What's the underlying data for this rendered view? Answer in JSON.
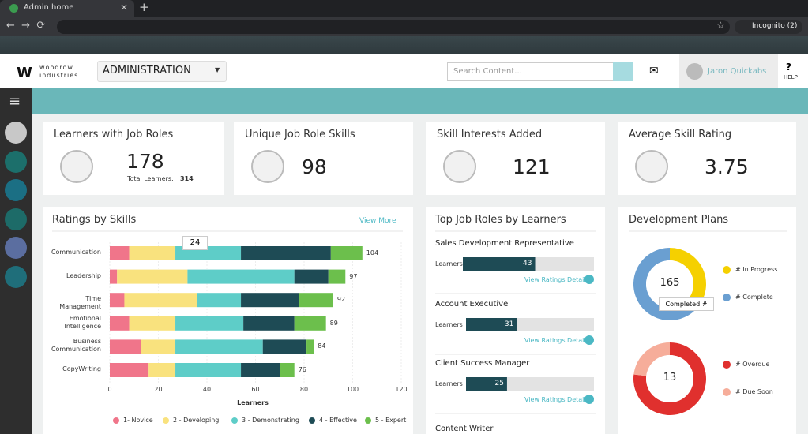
{
  "browser": {
    "tab_title": "Admin home",
    "profile": "Incognito (2)"
  },
  "header": {
    "logo_name": "woodrow",
    "logo_sub": "industries",
    "menu": "ADMINISTRATION",
    "search_placeholder": "Search Content...",
    "user": "Jaron Quickabs",
    "help": "HELP"
  },
  "kpis": [
    {
      "title": "Learners with Job Roles",
      "value": 178,
      "sub_label": "Total Learners:",
      "sub_value": 314
    },
    {
      "title": "Unique Job Role Skills",
      "value": 98
    },
    {
      "title": "Skill Interests Added",
      "value": 121
    },
    {
      "title": "Average Skill Rating",
      "value": 3.75
    }
  ],
  "chart_data": [
    {
      "type": "stacked-hbar",
      "title": "Ratings by Skills",
      "link": "View More",
      "categories": [
        "Communication",
        "Leadership",
        "Time Management",
        "Emotional Intelligence",
        "Business Communication",
        "CopyWriting"
      ],
      "series": [
        {
          "name": "1- Novice",
          "color": "#f0758a",
          "values": [
            8,
            3,
            6,
            8,
            13,
            16
          ]
        },
        {
          "name": "2 - Developing",
          "color": "#f9e27e",
          "values": [
            19,
            29,
            30,
            19,
            14,
            11
          ]
        },
        {
          "name": "3 - Demonstrating",
          "color": "#5ecdc8",
          "values": [
            27,
            44,
            18,
            28,
            36,
            27
          ]
        },
        {
          "name": "4 - Effective",
          "color": "#1e4b55",
          "values": [
            37,
            14,
            24,
            21,
            18,
            16
          ]
        },
        {
          "name": "5 - Expert",
          "color": "#6cbf4c",
          "values": [
            13,
            7,
            14,
            13,
            3,
            6
          ]
        }
      ],
      "totals": [
        104,
        97,
        92,
        89,
        84,
        76
      ],
      "xlim": [
        0,
        120
      ],
      "xticks": [
        0,
        20,
        40,
        60,
        80,
        100,
        120
      ],
      "xlabel": "Learners",
      "grid": true,
      "tooltip": "24"
    },
    {
      "type": "progress-bar",
      "title": "Top Job Roles by Learners",
      "categories": [
        "Sales Development Representative",
        "Account Executive",
        "Client Success Manager",
        "Content Writer"
      ],
      "values": [
        43,
        31,
        25,
        null
      ],
      "bar_label": "Learners",
      "link": "View Ratings Details",
      "xlim": [
        0,
        78
      ],
      "color": "#1e4b55"
    },
    {
      "type": "donut",
      "title": "Development Plans",
      "total": 165,
      "categories": [
        "# In Progress",
        "# Complete"
      ],
      "values": [
        58,
        107
      ],
      "colors": [
        "#f5d000",
        "#6a9fd1"
      ],
      "tooltip": "Completed #"
    },
    {
      "type": "donut",
      "total": 13,
      "categories": [
        "# Overdue",
        "# Due Soon"
      ],
      "values": [
        10,
        3
      ],
      "colors": [
        "#e0302e",
        "#f6ad9a"
      ]
    }
  ]
}
